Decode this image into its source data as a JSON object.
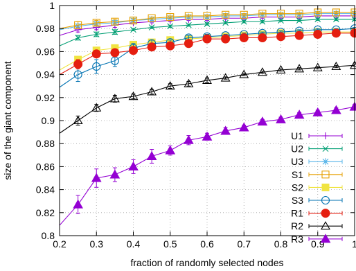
{
  "chart_data": {
    "type": "line",
    "title": "",
    "xlabel": "fraction of randomly selected nodes",
    "ylabel": "size of the giant component",
    "xlim": [
      0.2,
      1.0
    ],
    "ylim": [
      0.8,
      1.0
    ],
    "xticks": [
      "0.2",
      "0.3",
      "0.4",
      "0.5",
      "0.6",
      "0.7",
      "0.8",
      "0.9",
      "1"
    ],
    "yticks": [
      "0.8",
      "0.82",
      "0.84",
      "0.86",
      "0.88",
      "0.9",
      "0.92",
      "0.94",
      "0.96",
      "0.98",
      "1"
    ],
    "grid": true,
    "legend_position": "bottom-right",
    "x": [
      0.25,
      0.3,
      0.35,
      0.4,
      0.45,
      0.5,
      0.55,
      0.6,
      0.65,
      0.7,
      0.75,
      0.8,
      0.85,
      0.9,
      0.95,
      1.0
    ],
    "series": [
      {
        "name": "U1",
        "color": "#9400d3",
        "marker": "plus",
        "fit_start": [
          0.2,
          0.974
        ],
        "values": [
          0.979,
          0.981,
          0.983,
          0.985,
          0.986,
          0.987,
          0.988,
          0.988,
          0.989,
          0.989,
          0.99,
          0.99,
          0.99,
          0.991,
          0.991,
          0.991
        ],
        "errors": [
          0.002,
          0.002,
          0.002,
          0.001,
          0.001,
          0.001,
          0.001,
          0.001,
          0.001,
          0.001,
          0.001,
          0.001,
          0.001,
          0.001,
          0.001,
          0.001
        ]
      },
      {
        "name": "U2",
        "color": "#009e73",
        "marker": "x",
        "fit_start": [
          0.2,
          0.965
        ],
        "values": [
          0.972,
          0.975,
          0.977,
          0.979,
          0.981,
          0.982,
          0.983,
          0.984,
          0.985,
          0.986,
          0.986,
          0.987,
          0.987,
          0.988,
          0.988,
          0.988
        ],
        "errors": [
          0.002,
          0.002,
          0.002,
          0.001,
          0.001,
          0.001,
          0.001,
          0.001,
          0.001,
          0.001,
          0.001,
          0.001,
          0.001,
          0.001,
          0.001,
          0.001
        ]
      },
      {
        "name": "U3",
        "color": "#56b4e9",
        "marker": "asterisk",
        "fit_start": [
          0.2,
          0.979
        ],
        "values": [
          0.982,
          0.984,
          0.985,
          0.987,
          0.988,
          0.989,
          0.99,
          0.99,
          0.991,
          0.991,
          0.992,
          0.992,
          0.992,
          0.993,
          0.993,
          0.993
        ],
        "errors": [
          0.002,
          0.002,
          0.002,
          0.001,
          0.001,
          0.001,
          0.001,
          0.001,
          0.001,
          0.001,
          0.001,
          0.001,
          0.001,
          0.001,
          0.001,
          0.001
        ]
      },
      {
        "name": "S1",
        "color": "#e69f00",
        "marker": "square-open",
        "fit_start": [
          0.2,
          0.98
        ],
        "values": [
          0.983,
          0.985,
          0.986,
          0.987,
          0.989,
          0.99,
          0.991,
          0.991,
          0.992,
          0.992,
          0.993,
          0.993,
          0.993,
          0.994,
          0.994,
          0.994
        ],
        "errors": [
          0.003,
          0.002,
          0.002,
          0.002,
          0.001,
          0.001,
          0.001,
          0.001,
          0.001,
          0.001,
          0.001,
          0.001,
          0.001,
          0.001,
          0.001,
          0.001
        ]
      },
      {
        "name": "S2",
        "color": "#f0e442",
        "marker": "square-filled",
        "fit_start": [
          0.2,
          0.944
        ],
        "values": [
          0.953,
          0.961,
          0.963,
          0.966,
          0.968,
          0.97,
          0.971,
          0.972,
          0.973,
          0.974,
          0.975,
          0.976,
          0.976,
          0.977,
          0.977,
          0.977
        ],
        "errors": [
          0.003,
          0.002,
          0.002,
          0.002,
          0.001,
          0.001,
          0.001,
          0.001,
          0.001,
          0.001,
          0.001,
          0.001,
          0.001,
          0.001,
          0.001,
          0.001
        ]
      },
      {
        "name": "S3",
        "color": "#0072b2",
        "marker": "circle-open",
        "fit_start": [
          0.2,
          0.929
        ],
        "values": [
          0.94,
          0.947,
          0.952,
          0.963,
          0.967,
          0.968,
          0.972,
          0.973,
          0.974,
          0.975,
          0.976,
          0.977,
          0.978,
          0.979,
          0.979,
          0.98
        ],
        "errors": [
          0.006,
          0.006,
          0.005,
          0.004,
          0.003,
          0.002,
          0.002,
          0.002,
          0.001,
          0.001,
          0.001,
          0.001,
          0.001,
          0.001,
          0.001,
          0.001
        ]
      },
      {
        "name": "R1",
        "color": "#e51e10",
        "marker": "circle-filled",
        "fit_start": [
          0.2,
          0.94
        ],
        "values": [
          0.949,
          0.958,
          0.959,
          0.961,
          0.964,
          0.965,
          0.967,
          0.971,
          0.971,
          0.972,
          0.972,
          0.973,
          0.974,
          0.975,
          0.976,
          0.976
        ],
        "errors": [
          0.004,
          0.003,
          0.002,
          0.002,
          0.002,
          0.002,
          0.002,
          0.002,
          0.001,
          0.001,
          0.001,
          0.001,
          0.001,
          0.001,
          0.001,
          0.001
        ]
      },
      {
        "name": "R2",
        "color": "#000000",
        "marker": "triangle-open",
        "fit_start": [
          0.2,
          0.889
        ],
        "values": [
          0.9,
          0.911,
          0.919,
          0.921,
          0.925,
          0.93,
          0.932,
          0.935,
          0.937,
          0.94,
          0.942,
          0.944,
          0.945,
          0.946,
          0.947,
          0.948
        ],
        "errors": [
          0.004,
          0.003,
          0.003,
          0.002,
          0.002,
          0.002,
          0.002,
          0.002,
          0.001,
          0.001,
          0.001,
          0.001,
          0.001,
          0.001,
          0.001,
          0.001
        ]
      },
      {
        "name": "R3",
        "color": "#9400d3",
        "marker": "triangle-filled",
        "fit_start": [
          0.2,
          0.809
        ],
        "values": [
          0.827,
          0.85,
          0.853,
          0.86,
          0.869,
          0.874,
          0.883,
          0.886,
          0.891,
          0.894,
          0.899,
          0.901,
          0.905,
          0.907,
          0.909,
          0.912
        ],
        "errors": [
          0.008,
          0.008,
          0.006,
          0.006,
          0.006,
          0.004,
          0.004,
          0.003,
          0.003,
          0.002,
          0.002,
          0.002,
          0.002,
          0.002,
          0.002,
          0.002
        ]
      }
    ]
  }
}
